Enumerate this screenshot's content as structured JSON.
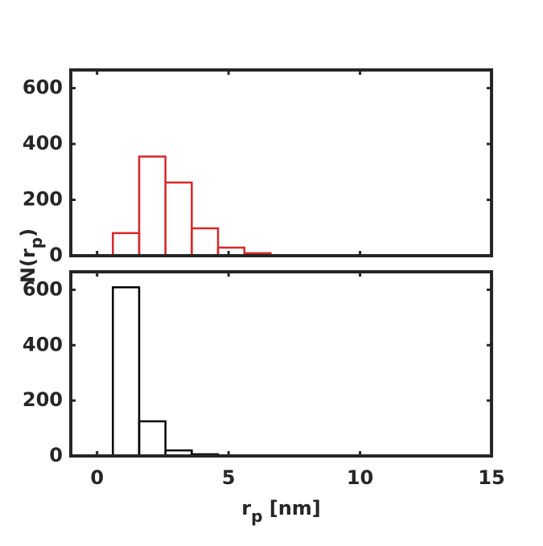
{
  "chart_data": [
    {
      "type": "histogram",
      "color": "#d62728",
      "bins": [
        0.6,
        1.6,
        2.6,
        3.6,
        4.6,
        5.6,
        6.6
      ],
      "values": [
        81,
        355,
        262,
        98,
        29,
        9
      ],
      "xlim": [
        -1,
        15
      ],
      "xticks": [
        0,
        5,
        10,
        15
      ],
      "show_xtick_labels": false,
      "ylim": [
        0,
        665
      ],
      "yticks": [
        0,
        200,
        400,
        600
      ],
      "ylabel": {
        "main": "N(r",
        "sub": "p",
        "tail": ")"
      }
    },
    {
      "type": "histogram",
      "color": "#000000",
      "bins": [
        0.6,
        1.6,
        2.6,
        3.6,
        4.6,
        5.6,
        6.6
      ],
      "values": [
        609,
        125,
        20,
        6,
        0,
        0
      ],
      "xlim": [
        -1,
        15
      ],
      "xticks": [
        0,
        5,
        10,
        15
      ],
      "show_xtick_labels": true,
      "ylim": [
        0,
        665
      ],
      "yticks": [
        0,
        200,
        400,
        600
      ],
      "xlabel": {
        "main": "r",
        "sub": "p",
        "tail": " [nm]"
      }
    }
  ]
}
